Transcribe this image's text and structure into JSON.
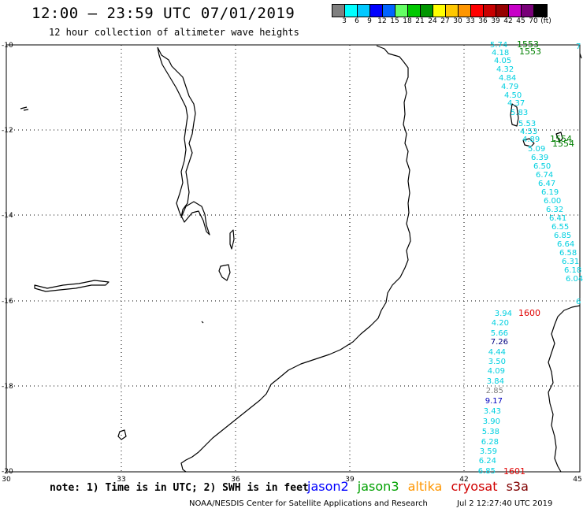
{
  "header": {
    "title": "12:00 – 23:59 UTC 07/01/2019",
    "subtitle": "12 hour collection of altimeter wave heights"
  },
  "colorbar": {
    "colors": [
      "#808080",
      "#00ffff",
      "#00c8ff",
      "#0000ff",
      "#0064ff",
      "#64ff64",
      "#00c800",
      "#009600",
      "#ffff00",
      "#ffc800",
      "#ff9600",
      "#ff0000",
      "#c80000",
      "#960000",
      "#c800c8",
      "#780078",
      "#000000"
    ],
    "labels": [
      "3",
      "6",
      "9",
      "12",
      "15",
      "18",
      "21",
      "24",
      "27",
      "30",
      "33",
      "36",
      "39",
      "42",
      "45",
      "70",
      "(ft)"
    ]
  },
  "axes": {
    "lat_labels": [
      "-10",
      "-12",
      "-14",
      "-16",
      "-18",
      "-20"
    ],
    "lon_labels": [
      "30",
      "33",
      "36",
      "39",
      "42",
      "45"
    ]
  },
  "wave_labels": {
    "track1_cyan": [
      "5.74",
      "4.18",
      "4.05",
      "4.32",
      "4.84",
      "4.79",
      "4.50",
      "4.37",
      "5.83",
      "5.53",
      "4.53",
      "4.89",
      "5.09",
      "6.39",
      "6.50",
      "6.74",
      "6.47",
      "6.19",
      "6.00",
      "6.32",
      "6.41",
      "6.55",
      "6.85",
      "6.64",
      "6.58",
      "6.31",
      "6.18",
      "6.04"
    ],
    "track1_ids": [
      "1553",
      "1553",
      "1554",
      "1554"
    ],
    "track2_cyan": [
      "3.94",
      "4.20",
      "5.66",
      "7.26",
      "4.44",
      "3.50",
      "4.09",
      "3.84"
    ],
    "track2_gray": "2.85",
    "track2_blue": "9.17",
    "track2_cyan_b": [
      "3.43",
      "3.90",
      "5.38",
      "6.28",
      "3.59",
      "6.24",
      "6.85"
    ],
    "track2_ids": [
      "1600",
      "1601"
    ],
    "right_edge": [
      "7",
      "6"
    ]
  },
  "footer": {
    "note": "note: 1) Time is in UTC; 2) SWH is in feet",
    "legend_jason2": "jason2",
    "legend_jason3": "jason3",
    "legend_altika": "altika",
    "legend_cryosat": "cryosat",
    "legend_s3a": "s3a",
    "credit": "NOAA/NESDIS Center for Satellite Applications and Research",
    "timestamp": "Jul  2 12:27:40 UTC 2019"
  }
}
